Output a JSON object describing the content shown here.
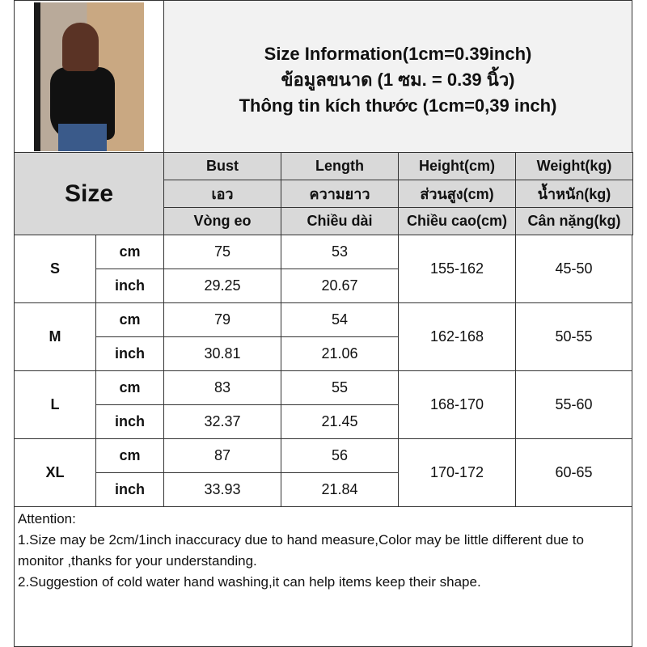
{
  "title_lines": [
    "Size Information(1cm=0.39inch)",
    "ข้อมูลขนาด (1 ซม. = 0.39 นิ้ว)",
    "Thông tin kích thước (1cm=0,39 inch)"
  ],
  "size_label": "Size",
  "columns": [
    [
      "Bust",
      "เอว",
      "Vòng eo"
    ],
    [
      "Length",
      "ความยาว",
      "Chiều dài"
    ],
    [
      "Height(cm)",
      "ส่วนสูง(cm)",
      "Chiều cao(cm)"
    ],
    [
      "Weight(kg)",
      "น้ำหนัก(kg)",
      "Cân nặng(kg)"
    ]
  ],
  "units": [
    "cm",
    "inch"
  ],
  "rows": [
    {
      "size": "S",
      "cm": [
        "75",
        "53"
      ],
      "inch": [
        "29.25",
        "20.67"
      ],
      "height": "155-162",
      "weight": "45-50"
    },
    {
      "size": "M",
      "cm": [
        "79",
        "54"
      ],
      "inch": [
        "30.81",
        "21.06"
      ],
      "height": "162-168",
      "weight": "50-55"
    },
    {
      "size": "L",
      "cm": [
        "83",
        "55"
      ],
      "inch": [
        "32.37",
        "21.45"
      ],
      "height": "168-170",
      "weight": "55-60"
    },
    {
      "size": "XL",
      "cm": [
        "87",
        "56"
      ],
      "inch": [
        "33.93",
        "21.84"
      ],
      "height": "170-172",
      "weight": "60-65"
    }
  ],
  "attention": {
    "heading": "Attention:",
    "lines": [
      "1.Size may be 2cm/1inch inaccuracy due to hand measure,Color may be little different due to monitor ,thanks for your understanding.",
      "2.Suggestion of cold water hand washing,it can help items keep their shape."
    ]
  }
}
